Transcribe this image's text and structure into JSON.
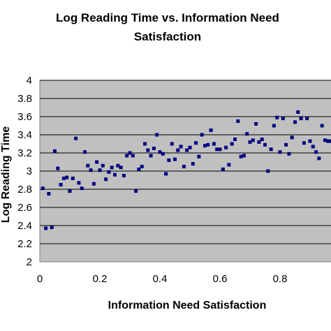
{
  "chart_data": {
    "type": "scatter",
    "title_lines": [
      "Log Reading Time vs. Information Need",
      "Satisfaction"
    ],
    "xlabel": "Information Need Satisfaction",
    "ylabel": "Log Reading Time",
    "xlim": [
      0,
      1
    ],
    "ylim": [
      2,
      4
    ],
    "x_ticks": [
      "0",
      "0.2",
      "0.4",
      "0.6",
      "0.8"
    ],
    "x_tick_values": [
      0,
      0.2,
      0.4,
      0.6,
      0.8
    ],
    "y_ticks": [
      "2",
      "2.2",
      "2.4",
      "2.6",
      "2.8",
      "3",
      "3.2",
      "3.4",
      "3.6",
      "3.8",
      "4"
    ],
    "y_tick_values": [
      2,
      2.2,
      2.4,
      2.6,
      2.8,
      3,
      3.2,
      3.4,
      3.6,
      3.8,
      4
    ],
    "grid": "horizontal",
    "colors": {
      "plot_bg": "#c0c0c0",
      "marker": "#000080",
      "grid": "#000000"
    },
    "series": [
      {
        "points": [
          [
            0.01,
            2.81
          ],
          [
            0.02,
            2.37
          ],
          [
            0.03,
            2.75
          ],
          [
            0.04,
            2.38
          ],
          [
            0.05,
            3.22
          ],
          [
            0.06,
            3.03
          ],
          [
            0.07,
            2.85
          ],
          [
            0.08,
            2.92
          ],
          [
            0.09,
            2.93
          ],
          [
            0.1,
            2.78
          ],
          [
            0.11,
            2.92
          ],
          [
            0.12,
            3.36
          ],
          [
            0.13,
            2.87
          ],
          [
            0.14,
            2.81
          ],
          [
            0.15,
            3.21
          ],
          [
            0.16,
            3.06
          ],
          [
            0.17,
            3.01
          ],
          [
            0.18,
            2.86
          ],
          [
            0.19,
            3.1
          ],
          [
            0.2,
            3.01
          ],
          [
            0.21,
            3.06
          ],
          [
            0.22,
            2.91
          ],
          [
            0.23,
            2.99
          ],
          [
            0.24,
            3.04
          ],
          [
            0.25,
            2.96
          ],
          [
            0.26,
            3.06
          ],
          [
            0.27,
            3.04
          ],
          [
            0.28,
            2.95
          ],
          [
            0.29,
            3.17
          ],
          [
            0.3,
            3.2
          ],
          [
            0.31,
            3.17
          ],
          [
            0.32,
            2.78
          ],
          [
            0.33,
            3.02
          ],
          [
            0.34,
            3.05
          ],
          [
            0.35,
            3.3
          ],
          [
            0.36,
            3.23
          ],
          [
            0.37,
            3.17
          ],
          [
            0.38,
            3.25
          ],
          [
            0.39,
            3.4
          ],
          [
            0.4,
            3.21
          ],
          [
            0.41,
            3.19
          ],
          [
            0.42,
            2.97
          ],
          [
            0.43,
            3.12
          ],
          [
            0.44,
            3.3
          ],
          [
            0.45,
            3.13
          ],
          [
            0.46,
            3.23
          ],
          [
            0.47,
            3.27
          ],
          [
            0.48,
            3.05
          ],
          [
            0.49,
            3.23
          ],
          [
            0.5,
            3.26
          ],
          [
            0.51,
            3.08
          ],
          [
            0.52,
            3.31
          ],
          [
            0.53,
            3.16
          ],
          [
            0.54,
            3.4
          ],
          [
            0.55,
            3.28
          ],
          [
            0.56,
            3.29
          ],
          [
            0.57,
            3.45
          ],
          [
            0.58,
            3.3
          ],
          [
            0.59,
            3.24
          ],
          [
            0.6,
            3.24
          ],
          [
            0.61,
            3.02
          ],
          [
            0.62,
            3.26
          ],
          [
            0.63,
            3.07
          ],
          [
            0.64,
            3.3
          ],
          [
            0.65,
            3.35
          ],
          [
            0.66,
            3.55
          ],
          [
            0.67,
            3.16
          ],
          [
            0.68,
            3.17
          ],
          [
            0.69,
            3.41
          ],
          [
            0.7,
            3.32
          ],
          [
            0.71,
            3.34
          ],
          [
            0.72,
            3.52
          ],
          [
            0.73,
            3.32
          ],
          [
            0.74,
            3.35
          ],
          [
            0.75,
            3.29
          ],
          [
            0.76,
            3.0
          ],
          [
            0.77,
            3.24
          ],
          [
            0.78,
            3.5
          ],
          [
            0.79,
            3.59
          ],
          [
            0.8,
            3.21
          ],
          [
            0.81,
            3.58
          ],
          [
            0.82,
            3.29
          ],
          [
            0.83,
            3.19
          ],
          [
            0.84,
            3.37
          ],
          [
            0.85,
            3.54
          ],
          [
            0.86,
            3.65
          ],
          [
            0.87,
            3.58
          ],
          [
            0.88,
            3.31
          ],
          [
            0.89,
            3.58
          ],
          [
            0.9,
            3.33
          ],
          [
            0.91,
            3.27
          ],
          [
            0.92,
            3.21
          ],
          [
            0.93,
            3.14
          ],
          [
            0.94,
            3.5
          ],
          [
            0.95,
            3.34
          ],
          [
            0.96,
            3.33
          ],
          [
            0.97,
            3.33
          ],
          [
            0.98,
            3.25
          ],
          [
            0.99,
            3.2
          ]
        ]
      }
    ]
  }
}
